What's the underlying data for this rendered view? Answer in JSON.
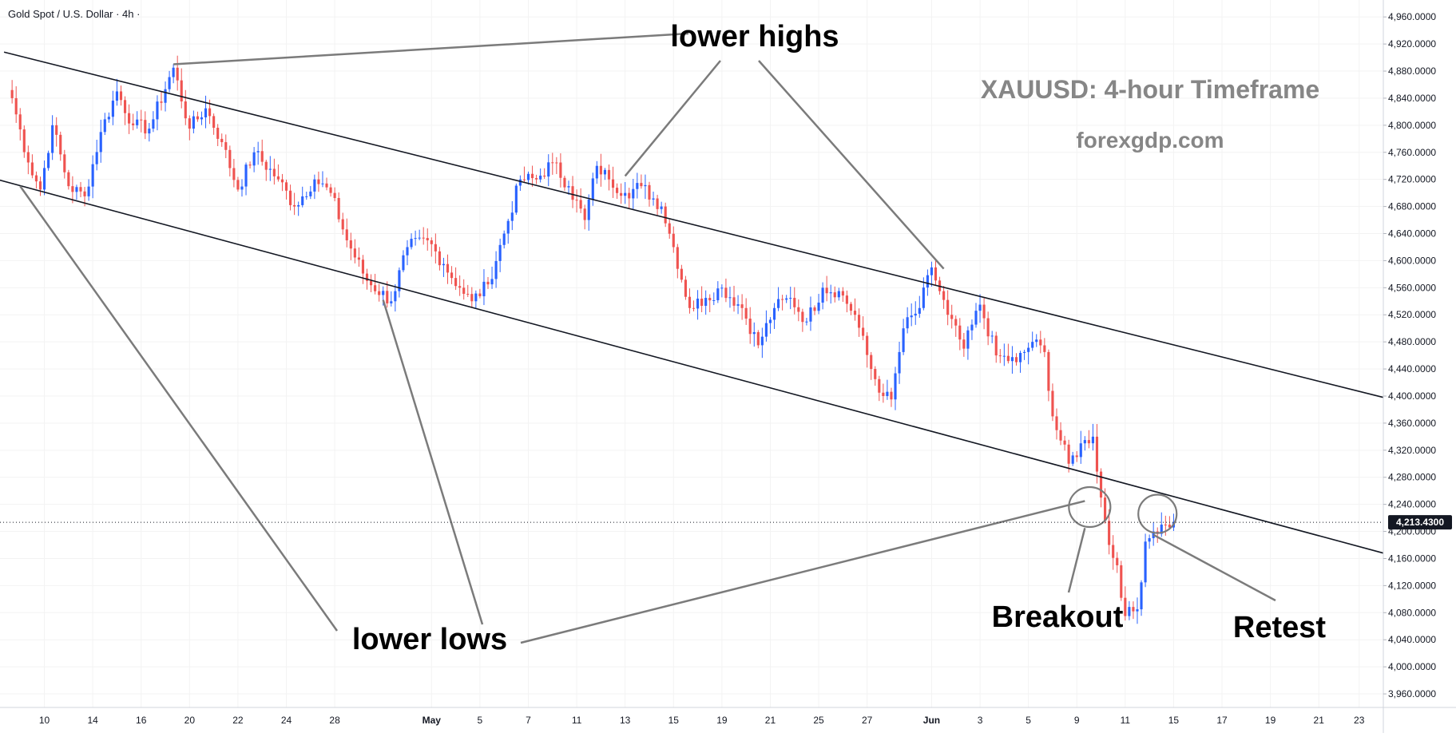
{
  "chart_data": {
    "type": "candlestick",
    "title": "Gold Spot / U.S. Dollar · 4h ·",
    "watermark_title": "XAUUSD: 4-hour Timeframe",
    "watermark_site": "forexgdp.com",
    "current_price": 4213.43,
    "current_price_label": "4,213.4300",
    "ylim": [
      3940,
      4985
    ],
    "y_ticks": [
      3960,
      4000,
      4040,
      4080,
      4120,
      4160,
      4200,
      4240,
      4280,
      4320,
      4360,
      4400,
      4440,
      4480,
      4520,
      4560,
      4600,
      4640,
      4680,
      4720,
      4760,
      4800,
      4840,
      4880,
      4920,
      4960
    ],
    "y_tick_labels": [
      "3,960.0000",
      "4,000.0000",
      "4,040.0000",
      "4,080.0000",
      "4,120.0000",
      "4,160.0000",
      "4,200.0000",
      "4,240.0000",
      "4,280.0000",
      "4,320.0000",
      "4,360.0000",
      "4,400.0000",
      "4,440.0000",
      "4,480.0000",
      "4,520.0000",
      "4,560.0000",
      "4,600.0000",
      "4,640.0000",
      "4,680.0000",
      "4,720.0000",
      "4,760.0000",
      "4,800.0000",
      "4,840.0000",
      "4,880.0000",
      "4,920.0000",
      "4,960.0000"
    ],
    "x_ticks": [
      {
        "bar": 8,
        "label": "10"
      },
      {
        "bar": 20,
        "label": "14"
      },
      {
        "bar": 32,
        "label": "16"
      },
      {
        "bar": 44,
        "label": "20"
      },
      {
        "bar": 56,
        "label": "22"
      },
      {
        "bar": 68,
        "label": "24"
      },
      {
        "bar": 80,
        "label": "28"
      },
      {
        "bar": 104,
        "label": "May"
      },
      {
        "bar": 116,
        "label": "5"
      },
      {
        "bar": 128,
        "label": "7"
      },
      {
        "bar": 140,
        "label": "11"
      },
      {
        "bar": 152,
        "label": "13"
      },
      {
        "bar": 164,
        "label": "15"
      },
      {
        "bar": 176,
        "label": "19"
      },
      {
        "bar": 188,
        "label": "21"
      },
      {
        "bar": 200,
        "label": "25"
      },
      {
        "bar": 212,
        "label": "27"
      },
      {
        "bar": 228,
        "label": "Jun"
      },
      {
        "bar": 240,
        "label": "3"
      },
      {
        "bar": 252,
        "label": "5"
      },
      {
        "bar": 264,
        "label": "9"
      },
      {
        "bar": 276,
        "label": "11"
      },
      {
        "bar": 288,
        "label": "15"
      },
      {
        "bar": 300,
        "label": "17"
      },
      {
        "bar": 312,
        "label": "19"
      },
      {
        "bar": 324,
        "label": "21"
      },
      {
        "bar": 334,
        "label": "23"
      }
    ],
    "x_range_bars": [
      -3,
      340
    ],
    "bullish_color": "#2962ff",
    "bearish_color": "#ef5350",
    "close_path_anchors": [
      [
        0,
        4840
      ],
      [
        4,
        4745
      ],
      [
        7,
        4705
      ],
      [
        10,
        4800
      ],
      [
        14,
        4710
      ],
      [
        18,
        4695
      ],
      [
        22,
        4790
      ],
      [
        26,
        4850
      ],
      [
        30,
        4800
      ],
      [
        34,
        4795
      ],
      [
        40,
        4885
      ],
      [
        44,
        4795
      ],
      [
        48,
        4825
      ],
      [
        52,
        4775
      ],
      [
        56,
        4705
      ],
      [
        60,
        4760
      ],
      [
        66,
        4720
      ],
      [
        70,
        4680
      ],
      [
        75,
        4720
      ],
      [
        79,
        4700
      ],
      [
        83,
        4630
      ],
      [
        88,
        4570
      ],
      [
        94,
        4540
      ],
      [
        98,
        4620
      ],
      [
        103,
        4630
      ],
      [
        107,
        4595
      ],
      [
        111,
        4560
      ],
      [
        114,
        4540
      ],
      [
        118,
        4565
      ],
      [
        122,
        4640
      ],
      [
        126,
        4720
      ],
      [
        130,
        4720
      ],
      [
        134,
        4745
      ],
      [
        138,
        4710
      ],
      [
        142,
        4660
      ],
      [
        145,
        4740
      ],
      [
        148,
        4720
      ],
      [
        152,
        4700
      ],
      [
        156,
        4710
      ],
      [
        161,
        4680
      ],
      [
        164,
        4620
      ],
      [
        168,
        4530
      ],
      [
        172,
        4545
      ],
      [
        176,
        4560
      ],
      [
        181,
        4530
      ],
      [
        185,
        4475
      ],
      [
        189,
        4530
      ],
      [
        193,
        4545
      ],
      [
        197,
        4510
      ],
      [
        201,
        4560
      ],
      [
        205,
        4555
      ],
      [
        209,
        4520
      ],
      [
        213,
        4440
      ],
      [
        216,
        4400
      ],
      [
        218,
        4395
      ],
      [
        221,
        4500
      ],
      [
        225,
        4530
      ],
      [
        228,
        4590
      ],
      [
        232,
        4520
      ],
      [
        236,
        4470
      ],
      [
        240,
        4535
      ],
      [
        244,
        4460
      ],
      [
        249,
        4450
      ],
      [
        253,
        4480
      ],
      [
        256,
        4465
      ],
      [
        258,
        4370
      ],
      [
        262,
        4300
      ],
      [
        266,
        4335
      ],
      [
        268,
        4340
      ],
      [
        270,
        4250
      ],
      [
        272,
        4180
      ],
      [
        274,
        4150
      ],
      [
        276,
        4075
      ],
      [
        279,
        4085
      ],
      [
        281,
        4185
      ],
      [
        283,
        4200
      ],
      [
        286,
        4210
      ],
      [
        288,
        4213.43
      ]
    ],
    "channel_upper": {
      "from": [
        -2,
        4908
      ],
      "to": [
        340,
        4398
      ]
    },
    "channel_lower": {
      "from": [
        -5,
        4722
      ],
      "to": [
        340,
        4168
      ]
    },
    "annotations": [
      {
        "text": "lower highs",
        "pointers": [
          [
            40,
            4890
          ],
          [
            152,
            4725
          ],
          [
            231,
            4588
          ]
        ]
      },
      {
        "text": "lower lows",
        "pointers": [
          [
            2,
            4710
          ],
          [
            92,
            4542
          ],
          [
            266,
            4245
          ]
        ]
      },
      {
        "text": "Breakout",
        "pointers": [
          [
            266,
            4205
          ]
        ]
      },
      {
        "text": "Retest",
        "pointers": [
          [
            283,
            4195
          ]
        ]
      }
    ]
  }
}
